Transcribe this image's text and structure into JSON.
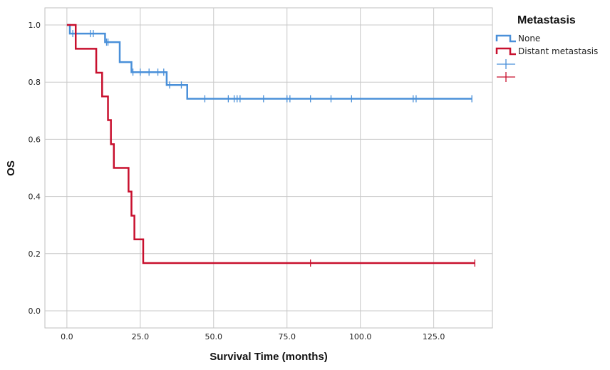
{
  "chart_data": {
    "type": "line",
    "subtype": "step",
    "xlabel": "Survival Time (months)",
    "ylabel": "OS",
    "xlim": [
      -7.5,
      145
    ],
    "ylim": [
      -0.06,
      1.06
    ],
    "xticks": [
      0.0,
      25.0,
      50.0,
      75.0,
      100.0,
      125.0
    ],
    "xtick_labels": [
      "0.0",
      "25.0",
      "50.0",
      "75.0",
      "100.0",
      "125.0"
    ],
    "yticks": [
      0.0,
      0.2,
      0.4,
      0.6,
      0.8,
      1.0
    ],
    "ytick_labels": [
      "0.0",
      "0.2",
      "0.4",
      "0.6",
      "0.8",
      "1.0"
    ],
    "grid": true,
    "legend": {
      "title": "Metastasis",
      "placement": "top-right",
      "entries": [
        {
          "label": "None",
          "kind": "line",
          "color": "#4a90d9"
        },
        {
          "label": "Distant metastasis",
          "kind": "line",
          "color": "#c8102e"
        },
        {
          "label": "",
          "kind": "censor",
          "color": "#4a90d9"
        },
        {
          "label": "",
          "kind": "censor",
          "color": "#c8102e"
        }
      ]
    },
    "series": [
      {
        "name": "None",
        "color": "#4a90d9",
        "steps": [
          [
            0,
            1.0
          ],
          [
            1,
            0.97
          ],
          [
            13,
            0.94
          ],
          [
            18,
            0.87
          ],
          [
            22,
            0.835
          ],
          [
            34,
            0.79
          ],
          [
            41,
            0.742
          ],
          [
            138,
            0.742
          ]
        ],
        "censored": [
          [
            2,
            0.97
          ],
          [
            8,
            0.97
          ],
          [
            9,
            0.97
          ],
          [
            13.5,
            0.94
          ],
          [
            14,
            0.94
          ],
          [
            22.5,
            0.835
          ],
          [
            25,
            0.835
          ],
          [
            28,
            0.835
          ],
          [
            31,
            0.835
          ],
          [
            33,
            0.835
          ],
          [
            35,
            0.79
          ],
          [
            39,
            0.79
          ],
          [
            47,
            0.742
          ],
          [
            55,
            0.742
          ],
          [
            57,
            0.742
          ],
          [
            58,
            0.742
          ],
          [
            59,
            0.742
          ],
          [
            67,
            0.742
          ],
          [
            75,
            0.742
          ],
          [
            76,
            0.742
          ],
          [
            83,
            0.742
          ],
          [
            90,
            0.742
          ],
          [
            97,
            0.742
          ],
          [
            118,
            0.742
          ],
          [
            119,
            0.742
          ],
          [
            138,
            0.742
          ]
        ]
      },
      {
        "name": "Distant metastasis",
        "color": "#c8102e",
        "steps": [
          [
            0,
            1.0
          ],
          [
            3,
            0.917
          ],
          [
            10,
            0.833
          ],
          [
            12,
            0.75
          ],
          [
            14,
            0.667
          ],
          [
            15,
            0.583
          ],
          [
            16,
            0.5
          ],
          [
            21,
            0.417
          ],
          [
            22,
            0.333
          ],
          [
            23,
            0.25
          ],
          [
            26,
            0.167
          ],
          [
            139,
            0.167
          ]
        ],
        "censored": [
          [
            83,
            0.167
          ],
          [
            139,
            0.167
          ]
        ]
      }
    ]
  }
}
